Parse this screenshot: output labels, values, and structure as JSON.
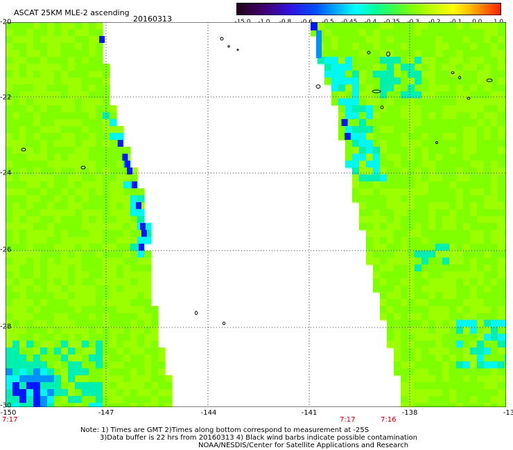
{
  "header": {
    "title": "ASCAT 25KM MLE-2 ascending",
    "date": "20160313"
  },
  "colorbar": {
    "ticks": [
      "-15.0",
      "-1.0",
      "-0.8",
      "-0.6",
      "-0.5",
      "-0.45",
      "-0.4",
      "-0.35",
      "-0.3",
      "-0.2",
      "-0.1",
      "0.0",
      "1.0"
    ],
    "colors": [
      "#300030",
      "#5a00a0",
      "#2020ff",
      "#00a0ff",
      "#00ffff",
      "#40ffa0",
      "#80ff00",
      "#a0ff00",
      "#c0ff00",
      "#ffff00",
      "#ffb000",
      "#ff6000",
      "#ff2000"
    ]
  },
  "map": {
    "lat_labels": [
      "-20",
      "-22",
      "-24",
      "-26",
      "-28",
      "-30"
    ],
    "lon_labels": [
      "-150",
      "-147",
      "-144",
      "-141",
      "-138",
      "-13"
    ],
    "colors": {
      "green": "#7fff00",
      "lime": "#9cff00",
      "cyan": "#00f8f0",
      "teal": "#00f0b0",
      "blue": "#0018ff",
      "azure": "#0090ff",
      "background": "#ffffff"
    }
  },
  "times": {
    "left": "7:17",
    "right_1": "7:17",
    "right_2": "7:16"
  },
  "notes": {
    "line1": "Note: 1) Times are GMT 2)Times along bottom correspond to measurement at -25S",
    "line2": "3)Data buffer is 22 hrs from 20160313 4) Black wind barbs indicate possible contamination",
    "line3": "NOAA/NESDIS/Center for Satellite Applications and Research"
  }
}
